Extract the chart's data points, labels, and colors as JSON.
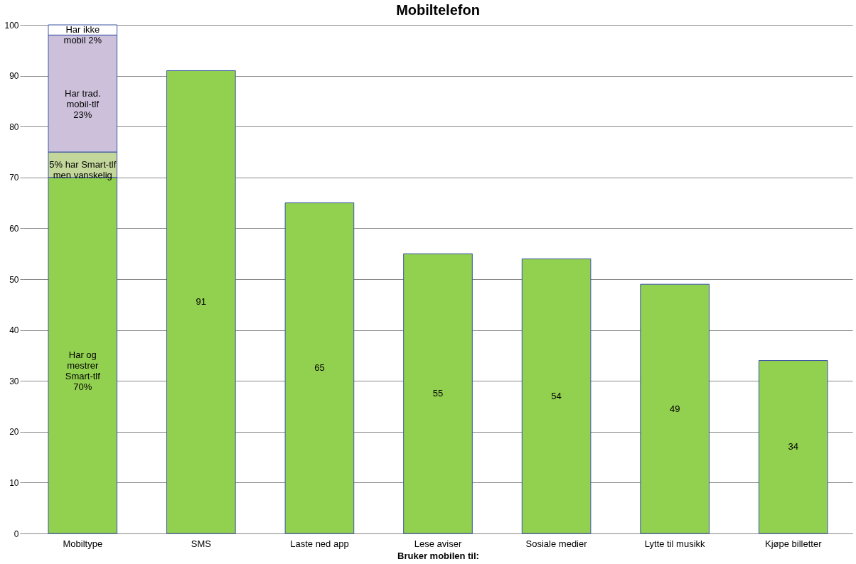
{
  "chart_data": {
    "type": "bar",
    "stacked": true,
    "title": "Mobiltelefon",
    "xlabel": "Bruker mobilen til:",
    "categories": [
      "Mobiltype",
      "SMS",
      "Laste ned app",
      "Lese aviser",
      "Sosiale medier",
      "Lytte til musikk",
      "Kjøpe billetter"
    ],
    "series": [
      {
        "color": "#92d050",
        "values": [
          70,
          91,
          65,
          55,
          54,
          49,
          34
        ],
        "value_labels": [
          "Har  og\nmestrer\nSmart-tlf\n70%",
          "91",
          "65",
          "55",
          "54",
          "49",
          "34"
        ]
      },
      {
        "color": "#c4d79b",
        "values": [
          5,
          null,
          null,
          null,
          null,
          null,
          null
        ],
        "value_labels": [
          "5% har Smart-tlf\nmen vanskelig",
          null,
          null,
          null,
          null,
          null,
          null
        ]
      },
      {
        "color": "#ccc0da",
        "values": [
          23,
          null,
          null,
          null,
          null,
          null,
          null
        ],
        "value_labels": [
          "Har trad.\nmobil-tlf\n23%",
          null,
          null,
          null,
          null,
          null,
          null
        ]
      },
      {
        "color": "#ffffff",
        "values": [
          2,
          null,
          null,
          null,
          null,
          null,
          null
        ],
        "value_labels": [
          "Har ikke\nmobil 2%",
          null,
          null,
          null,
          null,
          null,
          null
        ]
      }
    ],
    "ylim": [
      0,
      100
    ],
    "yticks": [
      0,
      10,
      20,
      30,
      40,
      50,
      60,
      70,
      80,
      90,
      100
    ],
    "grid": "y"
  }
}
